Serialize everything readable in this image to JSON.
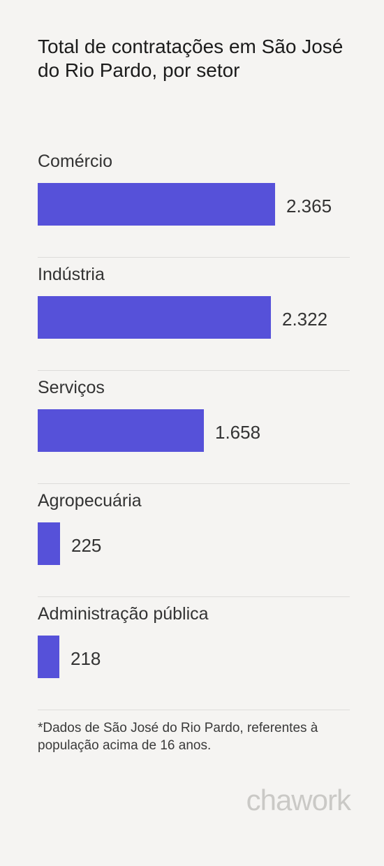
{
  "title": "Total de contratações em São José do Rio Pardo, por setor",
  "chart_data": {
    "type": "bar",
    "orientation": "horizontal",
    "title": "Total de contratações em São José do Rio Pardo, por setor",
    "categories": [
      "Comércio",
      "Indústria",
      "Serviços",
      "Agropecuária",
      "Administração pública"
    ],
    "values": [
      2365,
      2322,
      1658,
      225,
      218
    ],
    "value_labels": [
      "2.365",
      "2.322",
      "1.658",
      "225",
      "218"
    ],
    "bar_color": "#5651d9",
    "grid": false,
    "legend": "none"
  },
  "footnote": "*Dados de São José do Rio Pardo, referentes à população acima de 16 anos.",
  "brand": "chawork"
}
